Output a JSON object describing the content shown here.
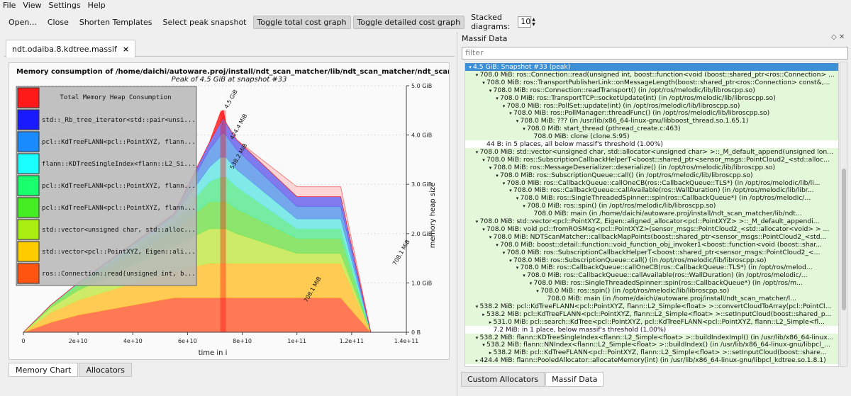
{
  "menu": [
    "File",
    "View",
    "Settings",
    "Help"
  ],
  "toolbar": {
    "open": "Open...",
    "close": "Close",
    "shorten": "Shorten Templates",
    "select_peak": "Select peak snapshot",
    "toggle_total": "Toggle total cost graph",
    "toggle_detailed": "Toggle detailed cost graph",
    "stacked_label": "Stacked diagrams:",
    "stacked_value": "10"
  },
  "doc_tab": {
    "label": "ndt.odaiba.8.kdtree.massif",
    "close": "×"
  },
  "chart_data": {
    "type": "area",
    "title": "Memory consumption of /home/daichi/autoware.proj/install/ndt_scan_matcher/lib/ndt_scan_matcher/ndt_scan_matcher",
    "subtitle": "Peak of 4.5 GiB at snapshot #33",
    "xlabel": "time in i",
    "ylabel": "memory heap size",
    "x_ticks": [
      "0",
      "2e+10",
      "4e+10",
      "6e+10",
      "8e+10",
      "1e+11",
      "1.2e+11",
      "1.4e+11"
    ],
    "y_ticks": [
      "0 B",
      "1.0 GiB",
      "2.0 GiB",
      "3.0 GiB",
      "4.0 GiB",
      "5.0 GiB"
    ],
    "xlim": [
      0,
      140000000000
    ],
    "ylim": [
      0,
      5.0
    ],
    "peak": {
      "x": 73000000000,
      "value": 4.5,
      "label": "4.5 GiB"
    },
    "labels_on_chart": [
      "424.4 MiB",
      "538.2 MiB",
      "708.1 MiB",
      "708.1 MiB"
    ],
    "legend_title": "Total Memory Heap Consumption",
    "legend": [
      {
        "name": "",
        "color": "#ff1a1a"
      },
      {
        "name": "std::_Rb_tree_iterator<std::pair<unsi...",
        "color": "#1a1aff"
      },
      {
        "name": "pcl::KdTreeFLANN<pcl::PointXYZ, flann...",
        "color": "#1a8cff"
      },
      {
        "name": "flann::KDTreeSingleIndex<flann::L2_Si...",
        "color": "#1affff"
      },
      {
        "name": "pcl::KdTreeFLANN<pcl::PointXYZ, flann...",
        "color": "#1aff6e"
      },
      {
        "name": "pcl::KdTreeFLANN<pcl::PointXYZ, flann...",
        "color": "#44ee22"
      },
      {
        "name": "std::vector<unsigned char, std::alloc...",
        "color": "#aaee11"
      },
      {
        "name": "std::vector<pcl::PointXYZ, Eigen::ali...",
        "color": "#ffcc00"
      },
      {
        "name": "ros::Connection::read(unsigned int, b...",
        "color": "#ff5511"
      }
    ],
    "x": [
      0,
      10000000000,
      20000000000,
      55000000000,
      68000000000,
      72000000000,
      73000000000,
      74000000000,
      78000000000,
      100000000000,
      116000000000,
      127000000000
    ],
    "series": [
      {
        "name": "ros::Connection::read(unsigned int, b...",
        "color": "#ff6a3d",
        "values": [
          0,
          0.2,
          0.35,
          0.7,
          0.7,
          0.7,
          0.7,
          0.7,
          0.7,
          0.7,
          0.7,
          0
        ]
      },
      {
        "name": "std::vector<pcl::PointXYZ, Eigen::ali...",
        "color": "#ffc93b",
        "values": [
          0,
          0.2,
          0.3,
          0.55,
          0.7,
          0.7,
          0.7,
          0.7,
          0.7,
          0.7,
          0.7,
          0
        ]
      },
      {
        "name": "std::vector<unsigned char, std::alloc...",
        "color": "#c4ee55",
        "values": [
          0,
          0.1,
          0.2,
          0.5,
          0.7,
          0.7,
          0.7,
          0.7,
          0.6,
          0.2,
          0.2,
          0
        ]
      },
      {
        "name": "pcl::KdTreeFLANN<pcl::PointXYZ, flann...",
        "color": "#7ae85a",
        "values": [
          0,
          0.05,
          0.1,
          0.3,
          0.55,
          0.55,
          0.55,
          0.55,
          0.5,
          0.3,
          0.3,
          0
        ]
      },
      {
        "name": "pcl::KdTreeFLANN<pcl::PointXYZ, flann...",
        "color": "#5ef09a",
        "values": [
          0,
          0.0,
          0.05,
          0.2,
          0.4,
          0.5,
          0.5,
          0.5,
          0.45,
          0.2,
          0.2,
          0
        ]
      },
      {
        "name": "flann::KDTreeSingleIndex<flann::L2_Si...",
        "color": "#6cecec",
        "values": [
          0,
          0.0,
          0.0,
          0.1,
          0.3,
          0.4,
          0.4,
          0.4,
          0.35,
          0.2,
          0.2,
          0
        ]
      },
      {
        "name": "pcl::KdTreeFLANN<pcl::PointXYZ, flann...",
        "color": "#5c9ff0",
        "values": [
          0,
          0.0,
          0.0,
          0.05,
          0.35,
          0.45,
          0.5,
          0.45,
          0.4,
          0.25,
          0.25,
          0
        ]
      },
      {
        "name": "std::_Rb_tree_iterator<std::pair<unsi...",
        "color": "#6a6af2",
        "values": [
          0,
          0.0,
          0.0,
          0.0,
          0.15,
          0.25,
          0.3,
          0.25,
          0.2,
          0.2,
          0.2,
          0
        ]
      },
      {
        "name": "",
        "color": "#ff2a2a",
        "values": [
          0,
          0.0,
          0.0,
          0.0,
          0.0,
          0.2,
          0.15,
          0.0,
          0.0,
          0.0,
          0.0,
          0
        ]
      }
    ],
    "total": [
      0,
      0.55,
      1.0,
      2.4,
      3.85,
      4.45,
      4.5,
      4.25,
      3.9,
      2.95,
      2.95,
      0
    ],
    "snapshot_x": 73000000000
  },
  "chart_tabs": [
    "Memory Chart",
    "Allocators"
  ],
  "right": {
    "title": "Massif Data",
    "filter_placeholder": "filter",
    "tabs": [
      "Custom Allocators",
      "Massif Data"
    ],
    "rows": [
      {
        "indent": 0,
        "arrow": "▾",
        "text": "4.5 GiB: Snapshot #33 (peak)",
        "sel": true
      },
      {
        "indent": 1,
        "arrow": "▾",
        "text": "708.0 MiB: ros::Connection::read(unsigned int, boost::function<void (boost::shared_ptr<ros::Connection> ..."
      },
      {
        "indent": 2,
        "arrow": "▾",
        "text": "708.0 MiB: ros::TransportPublisherLink::onMessageLength(boost::shared_ptr<ros::Connection> const&,..."
      },
      {
        "indent": 3,
        "arrow": "▾",
        "text": "708.0 MiB: ros::Connection::readTransport() (in /opt/ros/melodic/lib/libroscpp.so)"
      },
      {
        "indent": 4,
        "arrow": "▾",
        "text": "708.0 MiB: ros::TransportTCP::socketUpdate(int) (in /opt/ros/melodic/lib/libroscpp.so)"
      },
      {
        "indent": 5,
        "arrow": "▾",
        "text": "708.0 MiB: ros::PollSet::update(int) (in /opt/ros/melodic/lib/libroscpp.so)"
      },
      {
        "indent": 6,
        "arrow": "▾",
        "text": "708.0 MiB: ros::PollManager::threadFunc() (in /opt/ros/melodic/lib/libroscpp.so)"
      },
      {
        "indent": 7,
        "arrow": "▾",
        "text": "708.0 MiB: ??? (in /usr/lib/x86_64-linux-gnu/libboost_thread.so.1.65.1)"
      },
      {
        "indent": 8,
        "arrow": "▾",
        "text": "708.0 MiB: start_thread (pthread_create.c:463)"
      },
      {
        "indent": 9,
        "arrow": "",
        "text": "708.0 MiB: clone (clone.S:95)"
      },
      {
        "indent": 2,
        "arrow": "",
        "text": "44 B: in 5 places, all below massif's threshold (1.00%)"
      },
      {
        "indent": 1,
        "arrow": "▾",
        "text": "708.0 MiB: std::vector<unsigned char, std::allocator<unsigned char> >::_M_default_append(unsigned lon..."
      },
      {
        "indent": 2,
        "arrow": "▾",
        "text": "708.0 MiB: ros::SubscriptionCallbackHelperT<boost::shared_ptr<sensor_msgs::PointCloud2_<std::alloc..."
      },
      {
        "indent": 3,
        "arrow": "▾",
        "text": "708.0 MiB: ros::MessageDeserializer::deserialize() (in /opt/ros/melodic/lib/libroscpp.so)"
      },
      {
        "indent": 4,
        "arrow": "▾",
        "text": "708.0 MiB: ros::SubscriptionQueue::call() (in /opt/ros/melodic/lib/libroscpp.so)"
      },
      {
        "indent": 5,
        "arrow": "▾",
        "text": "708.0 MiB: ros::CallbackQueue::callOneCB(ros::CallbackQueue::TLS*) (in /opt/ros/melodic/lib/li..."
      },
      {
        "indent": 6,
        "arrow": "▾",
        "text": "708.0 MiB: ros::CallbackQueue::callAvailable(ros::WallDuration) (in /opt/ros/melodic/lib/libr..."
      },
      {
        "indent": 7,
        "arrow": "▾",
        "text": "708.0 MiB: ros::SingleThreadedSpinner::spin(ros::CallbackQueue*) (in /opt/ros/melodic/..."
      },
      {
        "indent": 8,
        "arrow": "▾",
        "text": "708.0 MiB: ros::spin() (in /opt/ros/melodic/lib/libroscpp.so)"
      },
      {
        "indent": 9,
        "arrow": "",
        "text": "708.0 MiB: main (in /home/daichi/autoware.proj/install/ndt_scan_matcher/lib/ndt..."
      },
      {
        "indent": 1,
        "arrow": "▾",
        "text": "708.0 MiB: std::vector<pcl::PointXYZ, Eigen::aligned_allocator<pcl::PointXYZ> >::_M_default_appendi..."
      },
      {
        "indent": 2,
        "arrow": "▾",
        "text": "708.0 MiB: void pcl::fromROSMsg<pcl::PointXYZ>(sensor_msgs::PointCloud2_<std::allocator<void> > ..."
      },
      {
        "indent": 3,
        "arrow": "▾",
        "text": "708.0 MiB: NDTScanMatcher::callbackMapPoints(boost::shared_ptr<sensor_msgs::PointCloud2_<std..."
      },
      {
        "indent": 4,
        "arrow": "▾",
        "text": "708.0 MiB: boost::detail::function::void_function_obj_invoker1<boost::function<void (boost::shar..."
      },
      {
        "indent": 5,
        "arrow": "▾",
        "text": "708.0 MiB: ros::SubscriptionCallbackHelperT<boost::shared_ptr<sensor_msgs::PointCloud2_<..."
      },
      {
        "indent": 6,
        "arrow": "▾",
        "text": "708.0 MiB: ros::SubscriptionQueue::call() (in /opt/ros/melodic/lib/libroscpp.so)"
      },
      {
        "indent": 7,
        "arrow": "▾",
        "text": "708.0 MiB: ros::CallbackQueue::callOneCB(ros::CallbackQueue::TLS*) (in /opt/ros/melod..."
      },
      {
        "indent": 8,
        "arrow": "▾",
        "text": "708.0 MiB: ros::CallbackQueue::callAvailable(ros::WallDuration) (in /opt/ros/melodic/..."
      },
      {
        "indent": 9,
        "arrow": "▾",
        "text": "708.0 MiB: ros::SingleThreadedSpinner::spin(ros::CallbackQueue*) (in /opt/ros/m..."
      },
      {
        "indent": 10,
        "arrow": "▾",
        "text": "708.0 MiB: ros::spin() (in /opt/ros/melodic/lib/libroscpp.so)"
      },
      {
        "indent": 11,
        "arrow": "",
        "text": "708.0 MiB: main (in /home/daichi/autoware.proj/install/ndt_scan_matcher/l..."
      },
      {
        "indent": 1,
        "arrow": "▾",
        "text": "538.2 MiB: pcl::KdTreeFLANN<pcl::PointXYZ, flann::L2_Simple<float> >::convertCloudToArray(pcl::PointCl..."
      },
      {
        "indent": 2,
        "arrow": "▸",
        "text": "538.2 MiB: pcl::KdTreeFLANN<pcl::PointXYZ, flann::L2_Simple<float> >::setInputCloud(boost::shared_p..."
      },
      {
        "indent": 3,
        "arrow": "▸",
        "text": "531.0 MiB: pcl::search::KdTree<pcl::PointXYZ, pcl::KdTreeFLANN<pcl::PointXYZ, flann::L2_Simple<fl..."
      },
      {
        "indent": 3,
        "arrow": "",
        "text": "7.2 MiB: in 1 place, below massif's threshold (1.00%)"
      },
      {
        "indent": 1,
        "arrow": "▾",
        "text": "538.2 MiB: flann::KDTreeSingleIndex<flann::L2_Simple<float> >::buildIndexImpl() (in /usr/lib/x86_64-linux..."
      },
      {
        "indent": 2,
        "arrow": "▾",
        "text": "538.2 MiB: flann::NNIndex<flann::L2_Simple<float> >::buildIndex() (in /usr/lib/x86_64-linux-gnu/libpcl_..."
      },
      {
        "indent": 3,
        "arrow": "▸",
        "text": "538.2 MiB: pcl::KdTreeFLANN<pcl::PointXYZ, flann::L2_Simple<float> >::setInputCloud(boost::share..."
      },
      {
        "indent": 1,
        "arrow": "▸",
        "text": "424.4 MiB: flann::PooledAllocator::allocateMemory(int) (in /usr/lib/x86_64-linux-gnu/libpcl_kdtree.so.1.8.1)"
      }
    ]
  }
}
